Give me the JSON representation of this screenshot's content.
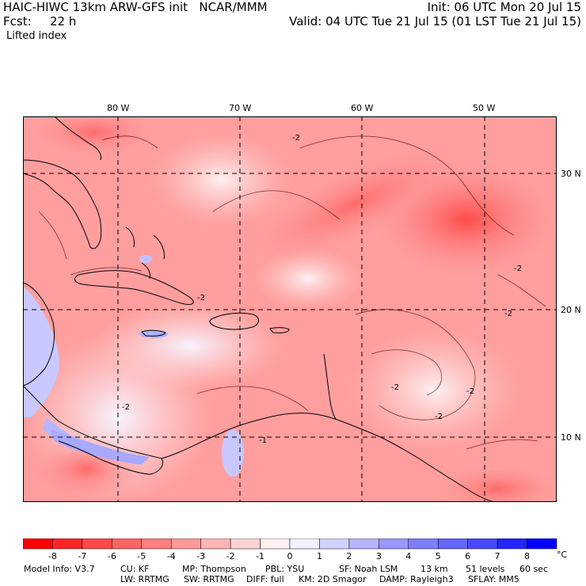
{
  "header": {
    "model_title": "HAIC-HIWC 13km ARW-GFS init   NCAR/MMM",
    "init": "Init: 06 UTC Mon 20 Jul 15",
    "fcst_label": "Fcst:",
    "fcst_value": "22 h",
    "valid": "Valid: 04 UTC Tue 21 Jul 15 (01 LST Tue 21 Jul 15)",
    "field": "Lifted index"
  },
  "map": {
    "lon_labels": [
      "80 W",
      "70 W",
      "60 W",
      "50 W"
    ],
    "lat_labels": [
      "30 N",
      "20 N",
      "10 N"
    ],
    "contour_labels": [
      "-2",
      "-2",
      "-2",
      "-2",
      "-2",
      "-2",
      "-2",
      "-2",
      "-1"
    ]
  },
  "colorbar": {
    "unit": "°C",
    "tick_labels": [
      "-8",
      "-7",
      "-6",
      "-5",
      "-4",
      "-3",
      "-2",
      "-1",
      "0",
      "1",
      "2",
      "3",
      "4",
      "5",
      "6",
      "7",
      "8"
    ],
    "colors": [
      "#ff0000",
      "#ff2424",
      "#ff4848",
      "#ff6464",
      "#ff7e7e",
      "#ff9898",
      "#ffb4b4",
      "#ffd2d2",
      "#fff0f0",
      "#f0f0ff",
      "#d2d2ff",
      "#b4b4ff",
      "#9898ff",
      "#7e7eff",
      "#6464ff",
      "#4848ff",
      "#2424ff",
      "#0000ff"
    ]
  },
  "footer": {
    "line1": [
      "Model Info: V3.7",
      "CU: KF",
      "MP: Thompson",
      "PBL: YSU",
      "SF: Noah LSM",
      "13 km",
      "51 levels",
      "60 sec"
    ],
    "line2": [
      "LW: RRTMG",
      "SW: RRTMG",
      "DIFF: full",
      "KM: 2D Smagor",
      "DAMP: Rayleigh3",
      "SFLAY: MM5"
    ]
  }
}
